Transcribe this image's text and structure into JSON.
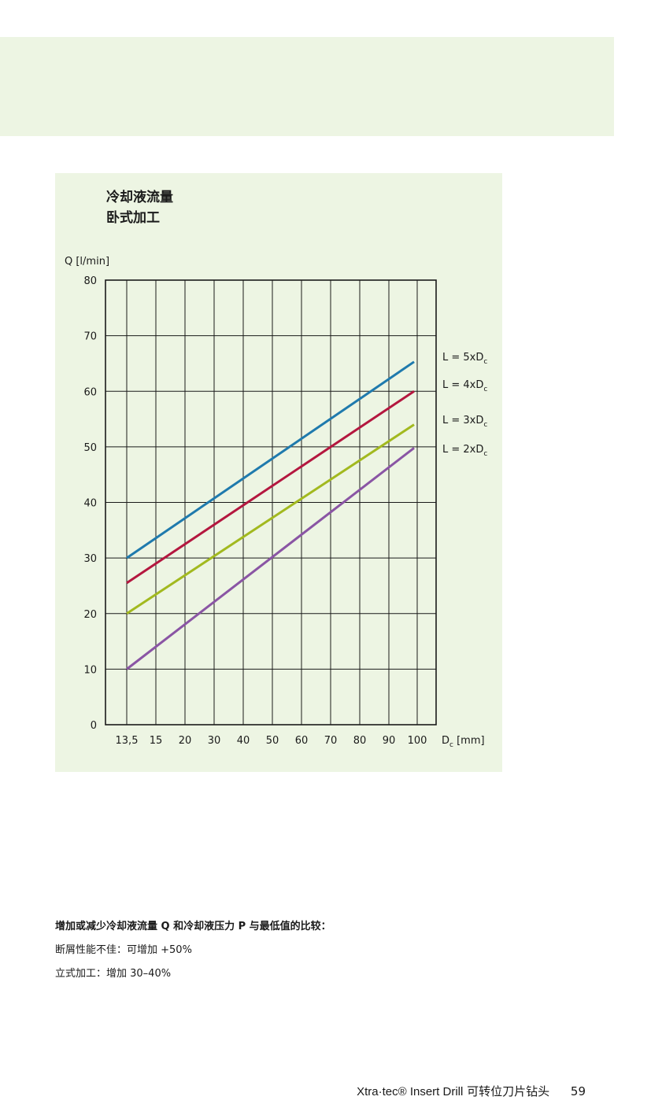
{
  "chart_data": {
    "type": "line",
    "title_lines": [
      "冷却液流量",
      "卧式加工"
    ],
    "ylabel": "Q [l/min]",
    "xlabel_main": "D",
    "xlabel_sub": "c",
    "xlabel_unit": " [mm]",
    "x_ticks": [
      "13,5",
      "15",
      "20",
      "30",
      "40",
      "50",
      "60",
      "70",
      "80",
      "90",
      "100"
    ],
    "y_ticks": [
      "80",
      "70",
      "60",
      "50",
      "40",
      "30",
      "20",
      "10",
      "0"
    ],
    "ylim": [
      0,
      80
    ],
    "grid": true,
    "series": [
      {
        "name_main": "L = 5xD",
        "name_sub": "c",
        "color": "#1f7aad",
        "start_y": 30,
        "end_y": 65.3
      },
      {
        "name_main": "L = 4xD",
        "name_sub": "c",
        "color": "#b4173f",
        "start_y": 25.5,
        "end_y": 60
      },
      {
        "name_main": "L = 3xD",
        "name_sub": "c",
        "color": "#a2b91f",
        "start_y": 20,
        "end_y": 54
      },
      {
        "name_main": "L = 2xD",
        "name_sub": "c",
        "color": "#8a55a4",
        "start_y": 10,
        "end_y": 49.8
      }
    ]
  },
  "note": {
    "line1": "增加或减少冷却液流量 Q 和冷却液压力 P 与最低值的比较：",
    "line2": "断屑性能不佳：可增加 +50%",
    "line3": "立式加工：增加 30–40%"
  },
  "footer": {
    "brand": "Xtra·tec® Insert Drill",
    "subtitle": "可转位刀片钻头",
    "page_number": "59"
  }
}
